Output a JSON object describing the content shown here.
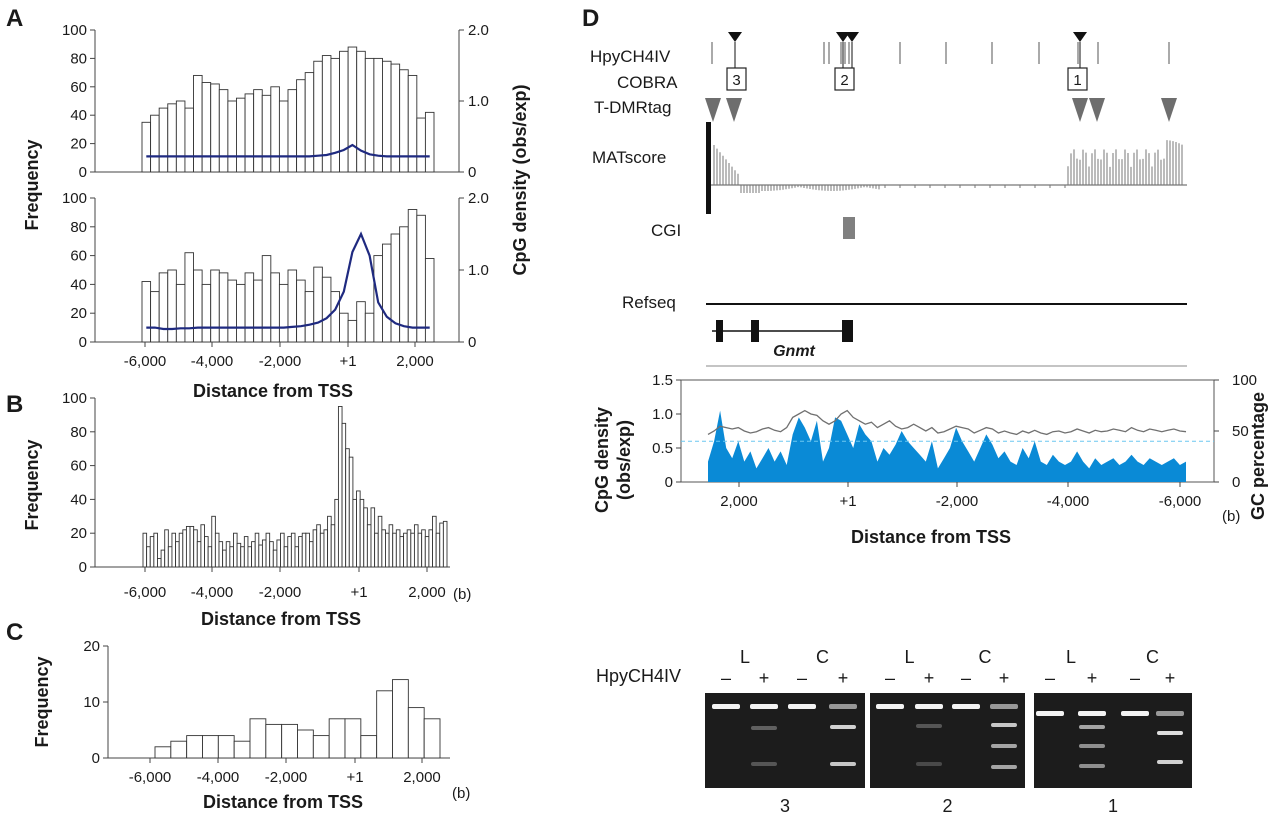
{
  "panels": {
    "A": "A",
    "B": "B",
    "C": "C",
    "D": "D"
  },
  "common": {
    "frequency_label": "Frequency",
    "distance_label": "Distance from TSS",
    "unit_b": "(b)",
    "cpg_density_label": "CpG density (obs/exp)"
  },
  "chart_data": [
    {
      "panel": "A-top",
      "type": "bar",
      "x_tick_labels": [],
      "bin_starts": [
        -6000,
        -5750,
        -5500,
        -5250,
        -5000,
        -4750,
        -4500,
        -4250,
        -4000,
        -3750,
        -3500,
        -3250,
        -3000,
        -2750,
        -2500,
        -2250,
        -2000,
        -1750,
        -1500,
        -1250,
        -1000,
        -750,
        -500,
        -250,
        1,
        250,
        500,
        750,
        1000,
        1250,
        1500,
        1750,
        2000,
        2250
      ],
      "values": [
        35,
        40,
        45,
        48,
        50,
        45,
        68,
        63,
        62,
        58,
        50,
        52,
        55,
        58,
        54,
        60,
        50,
        58,
        65,
        70,
        78,
        82,
        80,
        85,
        88,
        85,
        80,
        80,
        78,
        76,
        72,
        68,
        38,
        42
      ],
      "line": [
        0.22,
        0.22,
        0.22,
        0.22,
        0.22,
        0.22,
        0.22,
        0.22,
        0.22,
        0.22,
        0.22,
        0.22,
        0.22,
        0.22,
        0.22,
        0.22,
        0.22,
        0.22,
        0.22,
        0.22,
        0.23,
        0.24,
        0.27,
        0.31,
        0.38,
        0.3,
        0.25,
        0.23,
        0.22,
        0.22,
        0.22,
        0.22,
        0.22,
        0.22
      ],
      "ylim": [
        0,
        100
      ],
      "y_ticks": [
        0,
        20,
        40,
        60,
        80,
        100
      ],
      "y2lim": [
        0,
        2.0
      ],
      "y2_ticks": [
        "0",
        "1.0",
        "2.0"
      ]
    },
    {
      "panel": "A-bottom",
      "type": "bar",
      "x_tick_labels": [
        "-6,000",
        "-4,000",
        "-2,000",
        "+1",
        "2,000"
      ],
      "bin_starts": [
        -6000,
        -5750,
        -5500,
        -5250,
        -5000,
        -4750,
        -4500,
        -4250,
        -4000,
        -3750,
        -3500,
        -3250,
        -3000,
        -2750,
        -2500,
        -2250,
        -2000,
        -1750,
        -1500,
        -1250,
        -1000,
        -750,
        -500,
        -250,
        1,
        250,
        500,
        750,
        1000,
        1250,
        1500,
        1750,
        2000,
        2250
      ],
      "values": [
        42,
        35,
        48,
        50,
        40,
        62,
        50,
        40,
        50,
        48,
        43,
        40,
        48,
        43,
        60,
        48,
        40,
        50,
        43,
        35,
        52,
        45,
        35,
        20,
        15,
        28,
        20,
        60,
        68,
        75,
        80,
        92,
        88,
        58
      ],
      "line": [
        0.2,
        0.2,
        0.18,
        0.18,
        0.19,
        0.19,
        0.2,
        0.2,
        0.2,
        0.2,
        0.2,
        0.2,
        0.2,
        0.2,
        0.2,
        0.2,
        0.2,
        0.21,
        0.22,
        0.24,
        0.27,
        0.33,
        0.45,
        0.7,
        1.25,
        1.5,
        1.2,
        0.55,
        0.35,
        0.26,
        0.22,
        0.2,
        0.2,
        0.2
      ],
      "ylim": [
        0,
        100
      ],
      "y_ticks": [
        0,
        20,
        40,
        60,
        80,
        100
      ],
      "y2lim": [
        0,
        2.0
      ],
      "y2_ticks": [
        "0",
        "1.0",
        "2.0"
      ]
    },
    {
      "panel": "B",
      "type": "bar",
      "x_tick_labels": [
        "-6,000",
        "-4,000",
        "-2,000",
        "+1",
        "2,000"
      ],
      "values": [
        20,
        12,
        18,
        20,
        5,
        10,
        22,
        12,
        20,
        15,
        20,
        22,
        24,
        24,
        22,
        15,
        25,
        18,
        12,
        30,
        20,
        15,
        10,
        15,
        12,
        20,
        14,
        12,
        18,
        12,
        15,
        20,
        13,
        16,
        20,
        15,
        10,
        16,
        20,
        12,
        18,
        20,
        12,
        18,
        20,
        20,
        15,
        22,
        25,
        20,
        22,
        30,
        25,
        40,
        95,
        85,
        70,
        65,
        40,
        45,
        40,
        35,
        25,
        35,
        20,
        30,
        22,
        20,
        25,
        20,
        22,
        18,
        20,
        22,
        20,
        25,
        20,
        22,
        18,
        22,
        30,
        20,
        26,
        27
      ],
      "ylim": [
        0,
        100
      ],
      "y_ticks": [
        0,
        20,
        40,
        60,
        80,
        100
      ]
    },
    {
      "panel": "C",
      "type": "bar",
      "x_tick_labels": [
        "-6,000",
        "-4,000",
        "-2,000",
        "+1",
        "2,000"
      ],
      "bin_starts": [
        -6000,
        -5500,
        -5000,
        -4500,
        -4000,
        -3500,
        -3000,
        -2500,
        -2000,
        -1500,
        -1000,
        -500,
        1,
        500,
        1000,
        1500,
        2000,
        2500
      ],
      "values": [
        2,
        3,
        4,
        4,
        4,
        3,
        7,
        6,
        6,
        5,
        4,
        7,
        7,
        4,
        12,
        14,
        9,
        7
      ],
      "ylim": [
        0,
        20
      ],
      "y_ticks": [
        0,
        10,
        20
      ]
    },
    {
      "panel": "D-cpg",
      "type": "area",
      "x_tick_labels": [
        "2,000",
        "+1",
        "-2,000",
        "-4,000",
        "-6,000"
      ],
      "y_tick_labels": [
        "1.5",
        "1.0",
        "0.5",
        "0"
      ],
      "y2_tick_labels": [
        "100",
        "50",
        "0"
      ],
      "ylim": [
        0,
        1.5
      ],
      "y2lim": [
        0,
        100
      ],
      "series": [
        {
          "name": "",
          "values": [
            0.3,
            0.6,
            1.05,
            0.5,
            0.35,
            0.6,
            0.3,
            0.45,
            0.2,
            0.35,
            0.5,
            0.3,
            0.45,
            0.25,
            0.7,
            0.95,
            0.8,
            0.6,
            0.9,
            0.3,
            0.5,
            0.95,
            0.9,
            0.7,
            0.5,
            0.85,
            0.7,
            0.6,
            0.3,
            0.5,
            0.4,
            0.55,
            0.75,
            0.6,
            0.5,
            0.4,
            0.3,
            0.6,
            0.2,
            0.35,
            0.5,
            0.8,
            0.6,
            0.45,
            0.3,
            0.5,
            0.7,
            0.55,
            0.35,
            0.45,
            0.3,
            0.25,
            0.5,
            0.35,
            0.6,
            0.3,
            0.25,
            0.4,
            0.3,
            0.25,
            0.3,
            0.45,
            0.3,
            0.2,
            0.35,
            0.25,
            0.3,
            0.35,
            0.25,
            0.3,
            0.4,
            0.3,
            0.25,
            0.35,
            0.3,
            0.25,
            0.3,
            0.35,
            0.25,
            0.3
          ]
        },
        {
          "name": "",
          "values": [
            0.7,
            0.75,
            0.82,
            0.8,
            0.78,
            0.8,
            0.75,
            0.72,
            0.74,
            0.78,
            0.8,
            0.76,
            0.74,
            0.8,
            0.95,
            1.0,
            1.05,
            1.0,
            0.98,
            0.9,
            0.85,
            0.9,
            1.0,
            1.05,
            0.95,
            0.9,
            0.85,
            0.88,
            0.8,
            0.85,
            0.9,
            0.82,
            0.78,
            0.8,
            0.85,
            0.8,
            0.75,
            0.8,
            0.72,
            0.74,
            0.78,
            0.82,
            0.8,
            0.78,
            0.72,
            0.76,
            0.8,
            0.78,
            0.72,
            0.75,
            0.72,
            0.7,
            0.75,
            0.72,
            0.76,
            0.72,
            0.7,
            0.74,
            0.75,
            0.72,
            0.74,
            0.78,
            0.75,
            0.72,
            0.76,
            0.74,
            0.75,
            0.78,
            0.76,
            0.74,
            0.8,
            0.76,
            0.74,
            0.78,
            0.76,
            0.74,
            0.76,
            0.78,
            0.75,
            0.74
          ]
        }
      ],
      "threshold": 0.6
    }
  ],
  "panelD": {
    "tracks": {
      "hpy": "HpyCH4IV",
      "cobra": "COBRA",
      "tdmr": "T-DMRtag",
      "mat": "MATscore",
      "cgi": "CGI",
      "refseq": "Refseq"
    },
    "cobra_boxes": [
      "3",
      "2",
      "1"
    ],
    "gene_name": "Gnmt",
    "cpg_ylabel_line1": "CpG density",
    "cpg_ylabel_line2": "(obs/exp)",
    "gc_label": "GC percentage",
    "gel": {
      "enzyme": "HpyCH4IV",
      "sample_L": "L",
      "sample_C": "C",
      "minus": "–",
      "plus": "+",
      "lanes": [
        "3",
        "2",
        "1"
      ]
    }
  },
  "colors": {
    "line_dark_blue": "#1f2a80",
    "cpg_fill": "#0a8ad6",
    "gc_line": "#707070",
    "threshold_line": "#6cc7f0",
    "bar_fill": "#ffffff",
    "bar_stroke": "#333333",
    "gel_bg": "#1c1c1c"
  }
}
